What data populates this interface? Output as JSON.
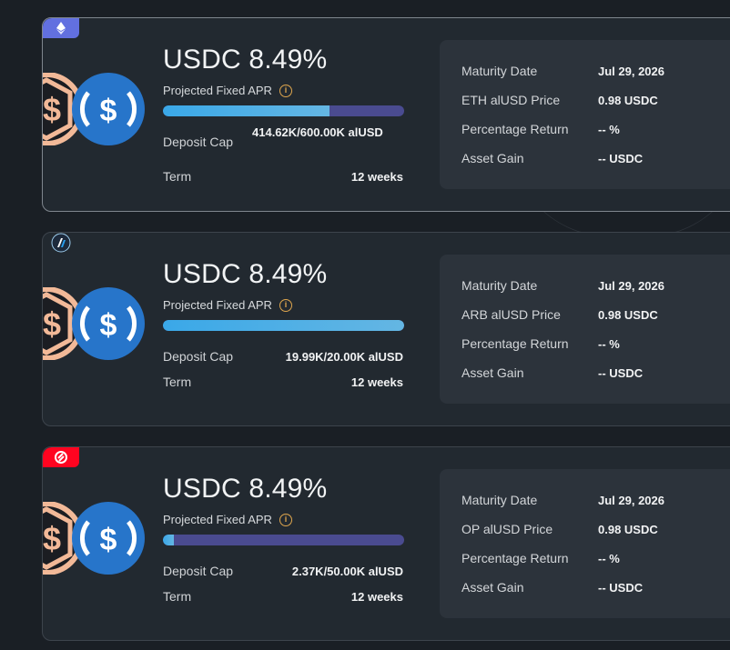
{
  "colors": {
    "background": "#1a1f25",
    "card": "#222930",
    "panel": "#2c333b",
    "progress_fill": "#3aa8e8",
    "progress_track": "#4a4b90",
    "eth_badge": "#6270e0",
    "arb_badge": "#1d2a3c",
    "op_badge": "#ff0420",
    "usdc_blue": "#2775ca",
    "alusd_peach": "#f2b998"
  },
  "cards": [
    {
      "chain_icon": "ethereum-icon",
      "title": "USDC 8.49%",
      "apr_label": "Projected Fixed APR",
      "progress": 0.69,
      "deposit_cap_label": "Deposit Cap",
      "deposit_cap_value": "414.62K/600.00K alUSD",
      "term_label": "Term",
      "term_value": "12 weeks",
      "details": [
        {
          "label": "Maturity Date",
          "value": "Jul 29, 2026"
        },
        {
          "label": "ETH alUSD Price",
          "value": "0.98 USDC"
        },
        {
          "label": "Percentage Return",
          "value": "-- %"
        },
        {
          "label": "Asset Gain",
          "value": "-- USDC"
        }
      ]
    },
    {
      "chain_icon": "arbitrum-icon",
      "title": "USDC 8.49%",
      "apr_label": "Projected Fixed APR",
      "progress": 0.9995,
      "deposit_cap_label": "Deposit Cap",
      "deposit_cap_value": "19.99K/20.00K alUSD",
      "term_label": "Term",
      "term_value": "12 weeks",
      "details": [
        {
          "label": "Maturity Date",
          "value": "Jul 29, 2026"
        },
        {
          "label": "ARB alUSD Price",
          "value": "0.98 USDC"
        },
        {
          "label": "Percentage Return",
          "value": "-- %"
        },
        {
          "label": "Asset Gain",
          "value": "-- USDC"
        }
      ]
    },
    {
      "chain_icon": "optimism-icon",
      "title": "USDC 8.49%",
      "apr_label": "Projected Fixed APR",
      "progress": 0.047,
      "deposit_cap_label": "Deposit Cap",
      "deposit_cap_value": "2.37K/50.00K alUSD",
      "term_label": "Term",
      "term_value": "12 weeks",
      "details": [
        {
          "label": "Maturity Date",
          "value": "Jul 29, 2026"
        },
        {
          "label": "OP alUSD Price",
          "value": "0.98 USDC"
        },
        {
          "label": "Percentage Return",
          "value": "-- %"
        },
        {
          "label": "Asset Gain",
          "value": "-- USDC"
        }
      ]
    }
  ]
}
